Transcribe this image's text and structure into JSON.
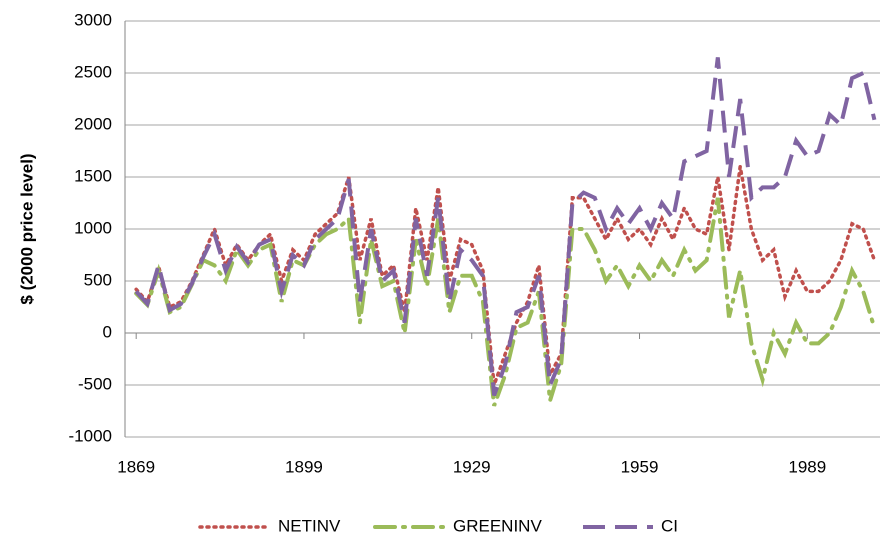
{
  "chart_data": {
    "type": "line",
    "y_label": "$ (2000 price level)",
    "x": [
      1869,
      1871,
      1873,
      1875,
      1877,
      1879,
      1881,
      1883,
      1885,
      1887,
      1889,
      1891,
      1893,
      1895,
      1897,
      1899,
      1901,
      1903,
      1905,
      1907,
      1909,
      1911,
      1913,
      1915,
      1917,
      1919,
      1921,
      1923,
      1925,
      1927,
      1929,
      1931,
      1933,
      1935,
      1937,
      1939,
      1941,
      1943,
      1945,
      1947,
      1949,
      1951,
      1953,
      1955,
      1957,
      1959,
      1961,
      1963,
      1965,
      1967,
      1969,
      1971,
      1973,
      1975,
      1977,
      1979,
      1981,
      1983,
      1985,
      1987,
      1989,
      1991,
      1993,
      1995,
      1997,
      1999,
      2001
    ],
    "series": [
      {
        "name": "NETINV",
        "color": "#c0504d",
        "dash": "dotted",
        "values": [
          420,
          300,
          640,
          250,
          300,
          500,
          750,
          1000,
          650,
          850,
          700,
          850,
          950,
          500,
          800,
          700,
          950,
          1050,
          1150,
          1500,
          700,
          1100,
          550,
          650,
          200,
          1200,
          700,
          1400,
          500,
          900,
          850,
          600,
          -500,
          -200,
          100,
          300,
          650,
          -400,
          -200,
          1300,
          1300,
          1100,
          900,
          1100,
          900,
          1000,
          850,
          1100,
          900,
          1200,
          1000,
          950,
          1500,
          800,
          1600,
          1000,
          700,
          800,
          350,
          600,
          400,
          400,
          500,
          700,
          1050,
          1000,
          700
        ]
      },
      {
        "name": "GREENINV",
        "color": "#9bbb59",
        "dash": "dashdot",
        "values": [
          380,
          270,
          600,
          200,
          250,
          470,
          700,
          650,
          500,
          800,
          650,
          800,
          850,
          300,
          700,
          650,
          850,
          950,
          1000,
          1100,
          100,
          900,
          450,
          500,
          0,
          900,
          450,
          1100,
          200,
          550,
          550,
          300,
          -700,
          -400,
          50,
          100,
          400,
          -650,
          -300,
          1000,
          1000,
          800,
          500,
          650,
          450,
          650,
          500,
          700,
          550,
          800,
          600,
          700,
          1300,
          150,
          600,
          -100,
          -450,
          0,
          -200,
          100,
          -100,
          -100,
          0,
          250,
          600,
          400,
          50
        ]
      },
      {
        "name": "CI",
        "color": "#8064a2",
        "dash": "dashed",
        "values": [
          400,
          280,
          650,
          220,
          280,
          480,
          730,
          950,
          600,
          830,
          680,
          850,
          900,
          400,
          750,
          650,
          900,
          1000,
          1100,
          1480,
          300,
          1000,
          500,
          600,
          100,
          1100,
          550,
          1300,
          300,
          800,
          700,
          550,
          -600,
          -300,
          200,
          250,
          550,
          -500,
          -250,
          1250,
          1350,
          1300,
          1000,
          1200,
          1050,
          1200,
          1000,
          1250,
          1100,
          1650,
          1700,
          1750,
          2650,
          1500,
          2250,
          1300,
          1400,
          1400,
          1500,
          1850,
          1700,
          1750,
          2100,
          2000,
          2450,
          2500,
          2050
        ]
      }
    ],
    "xlim": [
      1867,
      2002
    ],
    "xticks": [
      1869,
      1899,
      1929,
      1959,
      1989
    ],
    "ylim": [
      -1000,
      3000
    ],
    "yticks": [
      -1000,
      -500,
      0,
      500,
      1000,
      1500,
      2000,
      2500,
      3000
    ],
    "grid": true,
    "legend": "bottom"
  }
}
